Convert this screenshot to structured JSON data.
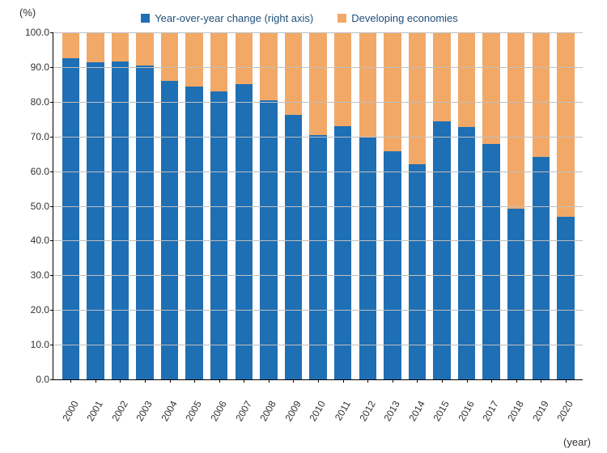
{
  "chart": {
    "type": "stacked-bar",
    "y_unit_label": "(%)",
    "x_unit_label": "(year)",
    "background_color": "#ffffff",
    "grid_color": "#bfbfbf",
    "axis_color": "#000000",
    "text_color": "#333333",
    "legend_text_color": "#1f4e79",
    "bar_width_ratio": 0.7,
    "ylim": [
      0,
      100
    ],
    "ytick_step": 10,
    "yticks": [
      "0.0",
      "10.0",
      "20.0",
      "30.0",
      "40.0",
      "50.0",
      "60.0",
      "70.0",
      "80.0",
      "90.0",
      "100.0"
    ],
    "legend": [
      {
        "label": "Year-over-year change (right axis)",
        "color": "#1f6fb4"
      },
      {
        "label": "Developing economies",
        "color": "#f2a968"
      }
    ],
    "categories": [
      "2000",
      "2001",
      "2002",
      "2003",
      "2004",
      "2005",
      "2006",
      "2007",
      "2008",
      "2009",
      "2010",
      "2011",
      "2012",
      "2013",
      "2014",
      "2015",
      "2016",
      "2017",
      "2018",
      "2019",
      "2020"
    ],
    "series": {
      "bottom": {
        "name": "Year-over-year change (right axis)",
        "color": "#1f6fb4",
        "values": [
          92.5,
          91.3,
          91.5,
          90.5,
          86.0,
          84.5,
          83.0,
          85.0,
          80.5,
          76.3,
          70.5,
          73.0,
          70.0,
          65.7,
          62.0,
          74.3,
          72.8,
          67.8,
          49.3,
          64.0,
          46.8
        ]
      },
      "top": {
        "name": "Developing economies",
        "color": "#f2a968",
        "values": [
          7.5,
          8.7,
          8.5,
          9.5,
          14.0,
          15.5,
          17.0,
          15.0,
          19.5,
          23.7,
          29.5,
          27.0,
          30.0,
          34.3,
          38.0,
          25.7,
          27.2,
          32.2,
          50.7,
          36.0,
          53.2
        ]
      }
    }
  }
}
